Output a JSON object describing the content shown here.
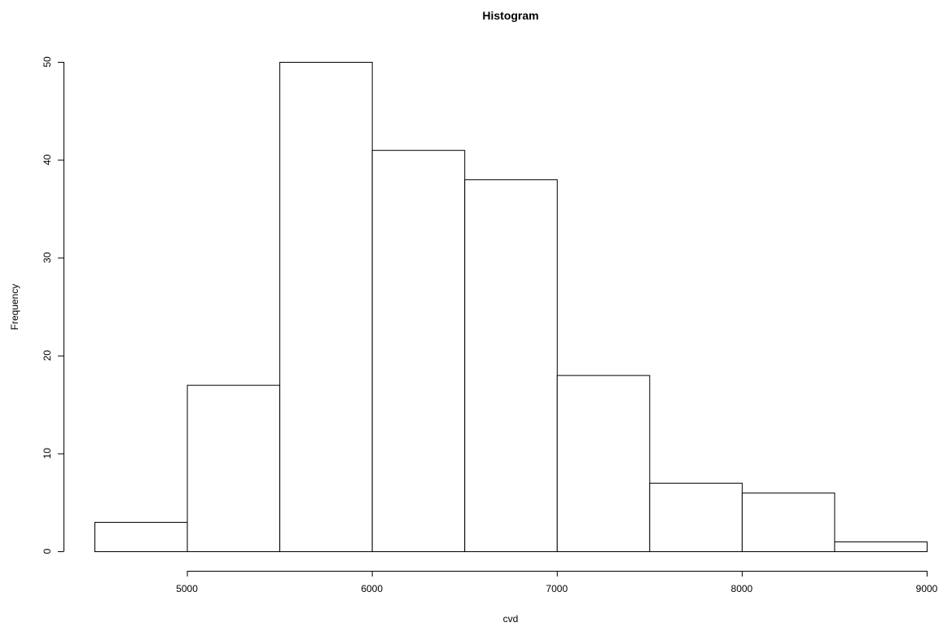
{
  "chart_data": {
    "type": "bar",
    "title": "Histogram",
    "xlabel": "cvd",
    "ylabel": "Frequency",
    "bins": [
      {
        "from": 4500,
        "to": 5000,
        "value": 3
      },
      {
        "from": 5000,
        "to": 5500,
        "value": 17
      },
      {
        "from": 5500,
        "to": 6000,
        "value": 50
      },
      {
        "from": 6000,
        "to": 6500,
        "value": 41
      },
      {
        "from": 6500,
        "to": 7000,
        "value": 38
      },
      {
        "from": 7000,
        "to": 7500,
        "value": 18
      },
      {
        "from": 7500,
        "to": 8000,
        "value": 7
      },
      {
        "from": 8000,
        "to": 8500,
        "value": 6
      },
      {
        "from": 8500,
        "to": 9000,
        "value": 1
      }
    ],
    "xlim": [
      4500,
      9000
    ],
    "ylim": [
      0,
      50
    ],
    "xticks": [
      5000,
      6000,
      7000,
      8000,
      9000
    ],
    "yticks": [
      0,
      10,
      20,
      30,
      40,
      50
    ],
    "bar_fill": "#ffffff",
    "bar_stroke": "#000000",
    "grid": false
  }
}
